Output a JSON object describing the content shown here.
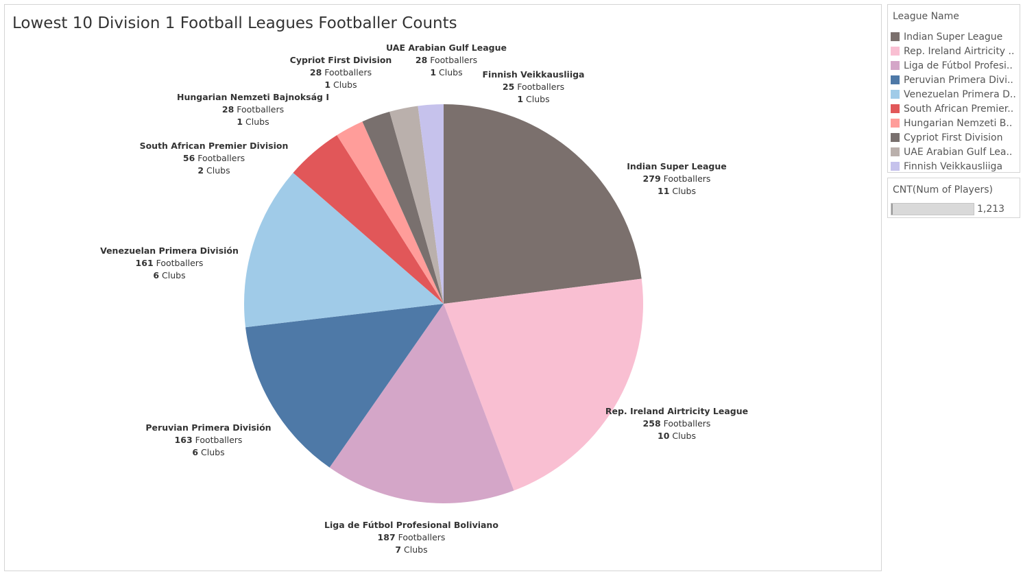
{
  "chart_data": {
    "type": "pie",
    "title": "Lowest 10 Division 1 Football Leagues Footballer Counts",
    "value_suffix": "Footballers",
    "clubs_suffix": "Clubs",
    "slices": [
      {
        "name": "Indian Super League",
        "label": "Indian Super League",
        "value": 279,
        "clubs": 11,
        "color": "#7b706d"
      },
      {
        "name": "Rep. Ireland Airtricity League",
        "label": "Rep. Ireland Airtricity League",
        "value": 258,
        "clubs": 10,
        "color": "#f9bfd2"
      },
      {
        "name": "Liga de Fútbol Profesional Boliviano",
        "label": "Liga de Fútbol Profesional Boliviano",
        "value": 187,
        "clubs": 7,
        "color": "#d4a6c8"
      },
      {
        "name": "Peruvian Primera División",
        "label": "Peruvian Primera División",
        "value": 163,
        "clubs": 6,
        "color": "#4e79a7"
      },
      {
        "name": "Venezuelan Primera División",
        "label": "Venezuelan Primera División",
        "value": 161,
        "clubs": 6,
        "color": "#a0cbe8"
      },
      {
        "name": "South African Premier Division",
        "label": "South African Premier Division",
        "value": 56,
        "clubs": 2,
        "color": "#e15759"
      },
      {
        "name": "Hungarian Nemzeti Bajnokság I",
        "label": "Hungarian Nemzeti Bajnokság I",
        "value": 28,
        "clubs": 1,
        "color": "#ff9d9a"
      },
      {
        "name": "Cypriot First Division",
        "label": "Cypriot First Division",
        "value": 28,
        "clubs": 1,
        "color": "#79706e"
      },
      {
        "name": "UAE Arabian Gulf League",
        "label": "UAE Arabian Gulf League",
        "value": 28,
        "clubs": 1,
        "color": "#bab0ac"
      },
      {
        "name": "Finnish Veikkausliiga",
        "label": "Finnish Veikkausliiga",
        "value": 25,
        "clubs": 1,
        "color": "#c6c2ec"
      }
    ]
  },
  "legend": {
    "title": "League Name",
    "items": [
      {
        "label": "Indian Super League",
        "color": "#7b706d"
      },
      {
        "label": "Rep. Ireland Airtricity ..",
        "color": "#f9bfd2"
      },
      {
        "label": "Liga de Fútbol Profesi..",
        "color": "#d4a6c8"
      },
      {
        "label": "Peruvian Primera Divi..",
        "color": "#4e79a7"
      },
      {
        "label": "Venezuelan Primera D..",
        "color": "#a0cbe8"
      },
      {
        "label": "South African Premier..",
        "color": "#e15759"
      },
      {
        "label": "Hungarian Nemzeti B..",
        "color": "#ff9d9a"
      },
      {
        "label": "Cypriot First Division",
        "color": "#79706e"
      },
      {
        "label": "UAE Arabian Gulf Lea..",
        "color": "#bab0ac"
      },
      {
        "label": "Finnish Veikkausliiga",
        "color": "#c6c2ec"
      }
    ]
  },
  "size_legend": {
    "title": "CNT(Num of Players)",
    "value": "1,213"
  }
}
